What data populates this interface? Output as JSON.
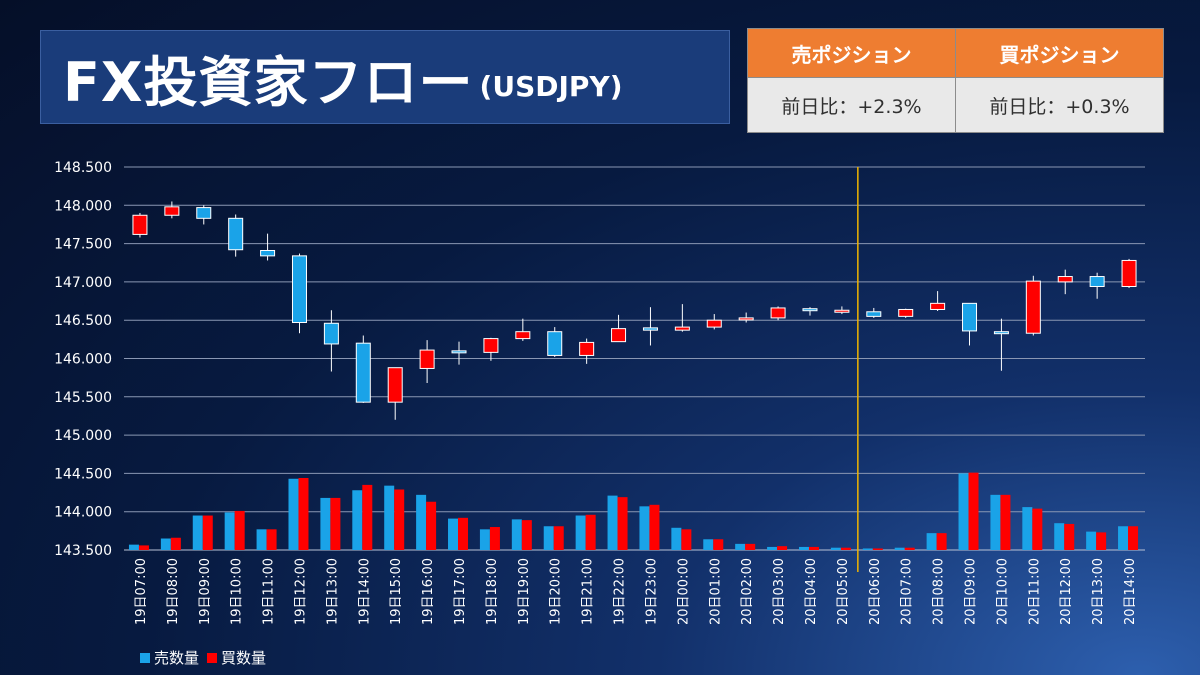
{
  "header": {
    "title": "FX投資家フロー",
    "subtitle": "(USDJPY)"
  },
  "positions": {
    "sell": {
      "label": "売ポジション",
      "change": "前日比：+2.3%"
    },
    "buy": {
      "label": "買ポジション",
      "change": "前日比：+0.3%"
    }
  },
  "colors": {
    "sell": "#1aa3e8",
    "buy": "#ff0000",
    "grid": "#8a97b3",
    "marker": "#f0b400",
    "header_bg": "#ee7d31"
  },
  "chart_data": {
    "type": "candlestick",
    "ylim": [
      143.5,
      148.5
    ],
    "yticks": [
      "143.500",
      "144.000",
      "144.500",
      "145.000",
      "145.500",
      "146.000",
      "146.500",
      "147.000",
      "147.500",
      "148.000",
      "148.500"
    ],
    "categories": [
      "19日07:00",
      "19日08:00",
      "19日09:00",
      "19日10:00",
      "19日11:00",
      "19日12:00",
      "19日13:00",
      "19日14:00",
      "19日15:00",
      "19日16:00",
      "19日17:00",
      "19日18:00",
      "19日19:00",
      "19日20:00",
      "19日21:00",
      "19日22:00",
      "19日23:00",
      "20日00:00",
      "20日01:00",
      "20日02:00",
      "20日03:00",
      "20日04:00",
      "20日05:00",
      "20日06:00",
      "20日07:00",
      "20日08:00",
      "20日09:00",
      "20日10:00",
      "20日11:00",
      "20日12:00",
      "20日13:00",
      "20日14:00"
    ],
    "candles": [
      {
        "open": 147.62,
        "high": 147.9,
        "low": 147.58,
        "close": 147.87
      },
      {
        "open": 147.87,
        "high": 148.05,
        "low": 147.83,
        "close": 147.98
      },
      {
        "open": 147.97,
        "high": 148.0,
        "low": 147.75,
        "close": 147.83
      },
      {
        "open": 147.83,
        "high": 147.88,
        "low": 147.33,
        "close": 147.42
      },
      {
        "open": 147.41,
        "high": 147.63,
        "low": 147.28,
        "close": 147.34
      },
      {
        "open": 147.34,
        "high": 147.37,
        "low": 146.33,
        "close": 146.47
      },
      {
        "open": 146.46,
        "high": 146.63,
        "low": 145.83,
        "close": 146.19
      },
      {
        "open": 146.2,
        "high": 146.3,
        "low": 145.42,
        "close": 145.43
      },
      {
        "open": 145.43,
        "high": 145.88,
        "low": 145.2,
        "close": 145.88
      },
      {
        "open": 145.87,
        "high": 146.24,
        "low": 145.68,
        "close": 146.11
      },
      {
        "open": 146.1,
        "high": 146.22,
        "low": 145.92,
        "close": 146.09
      },
      {
        "open": 146.08,
        "high": 146.27,
        "low": 145.97,
        "close": 146.26
      },
      {
        "open": 146.26,
        "high": 146.52,
        "low": 146.23,
        "close": 146.35
      },
      {
        "open": 146.35,
        "high": 146.41,
        "low": 146.02,
        "close": 146.04
      },
      {
        "open": 146.04,
        "high": 146.26,
        "low": 145.93,
        "close": 146.21
      },
      {
        "open": 146.22,
        "high": 146.57,
        "low": 146.22,
        "close": 146.39
      },
      {
        "open": 146.4,
        "high": 146.67,
        "low": 146.17,
        "close": 146.37
      },
      {
        "open": 146.37,
        "high": 146.71,
        "low": 146.35,
        "close": 146.41
      },
      {
        "open": 146.41,
        "high": 146.58,
        "low": 146.38,
        "close": 146.5
      },
      {
        "open": 146.51,
        "high": 146.6,
        "low": 146.47,
        "close": 146.53
      },
      {
        "open": 146.53,
        "high": 146.68,
        "low": 146.5,
        "close": 146.66
      },
      {
        "open": 146.65,
        "high": 146.67,
        "low": 146.56,
        "close": 146.64
      },
      {
        "open": 146.62,
        "high": 146.68,
        "low": 146.58,
        "close": 146.63
      },
      {
        "open": 146.61,
        "high": 146.66,
        "low": 146.53,
        "close": 146.55
      },
      {
        "open": 146.55,
        "high": 146.65,
        "low": 146.53,
        "close": 146.64
      },
      {
        "open": 146.64,
        "high": 146.88,
        "low": 146.62,
        "close": 146.72
      },
      {
        "open": 146.72,
        "high": 146.72,
        "low": 146.17,
        "close": 146.36
      },
      {
        "open": 146.35,
        "high": 146.52,
        "low": 145.84,
        "close": 146.34
      },
      {
        "open": 146.33,
        "high": 147.08,
        "low": 146.3,
        "close": 147.01
      },
      {
        "open": 147.0,
        "high": 147.16,
        "low": 146.84,
        "close": 147.07
      },
      {
        "open": 147.07,
        "high": 147.12,
        "low": 146.78,
        "close": 146.94
      },
      {
        "open": 146.94,
        "high": 147.3,
        "low": 146.92,
        "close": 147.28
      }
    ],
    "series": [
      {
        "name": "売数量",
        "values": [
          0.07,
          0.15,
          0.45,
          0.49,
          0.27,
          0.93,
          0.68,
          0.78,
          0.84,
          0.72,
          0.41,
          0.27,
          0.4,
          0.31,
          0.45,
          0.71,
          0.57,
          0.29,
          0.14,
          0.08,
          0.04,
          0.04,
          0.03,
          0.02,
          0.03,
          0.22,
          1.0,
          0.72,
          0.56,
          0.35,
          0.24,
          0.31
        ]
      },
      {
        "name": "買数量",
        "values": [
          0.06,
          0.16,
          0.45,
          0.51,
          0.27,
          0.94,
          0.68,
          0.85,
          0.79,
          0.63,
          0.42,
          0.3,
          0.39,
          0.31,
          0.46,
          0.69,
          0.59,
          0.27,
          0.14,
          0.08,
          0.05,
          0.04,
          0.03,
          0.02,
          0.03,
          0.22,
          1.01,
          0.72,
          0.54,
          0.34,
          0.23,
          0.31
        ]
      }
    ],
    "marker_after_index": 22,
    "legend_position": "bottom-left"
  }
}
